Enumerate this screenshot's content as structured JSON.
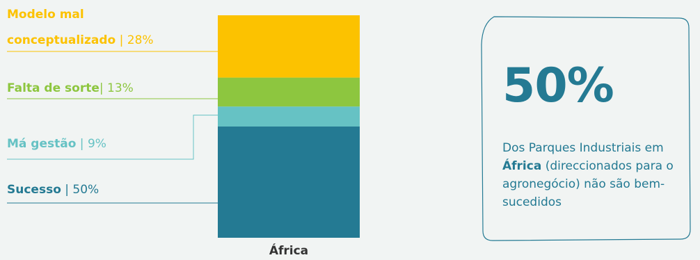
{
  "chart_data": {
    "type": "bar",
    "stacked": true,
    "categories": [
      "África"
    ],
    "series": [
      {
        "name": "Sucesso",
        "values": [
          50
        ],
        "color": "#247a93"
      },
      {
        "name": "Má gestão",
        "values": [
          9
        ],
        "color": "#66c2c4"
      },
      {
        "name": "Falta de sorte",
        "values": [
          13
        ],
        "color": "#8dc63f"
      },
      {
        "name": "Modelo mal conceptualizado",
        "values": [
          28
        ],
        "color": "#fcc200"
      }
    ],
    "ylim": [
      0,
      100
    ],
    "legend": "left",
    "grid": false
  },
  "labels": [
    {
      "lines": [
        "Modelo mal",
        "conceptualizado"
      ],
      "sep": " | ",
      "pct": "28%",
      "color": "#fcc200"
    },
    {
      "lines": [
        "Falta de sorte"
      ],
      "sep": "| ",
      "pct": "13%",
      "color": "#8dc63f"
    },
    {
      "lines": [
        "Má gestão"
      ],
      "sep": "  | ",
      "pct": "9%",
      "color": "#66c2c4"
    },
    {
      "lines": [
        "Sucesso"
      ],
      "sep": "  | ",
      "pct": "50%",
      "color": "#247a93"
    }
  ],
  "callout": {
    "big": "50%",
    "desc_before": "Dos Parques Industriais em ",
    "desc_bold": "África",
    "desc_after": " (direccionados para o agronegócio) não são bem-sucedidos",
    "color": "#247a93"
  }
}
